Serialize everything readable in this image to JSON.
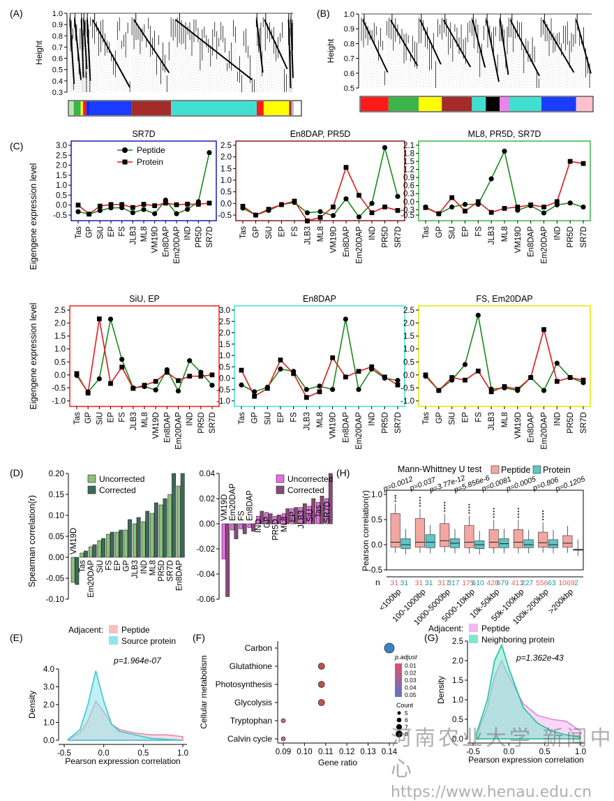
{
  "panel_labels": [
    "(A)",
    "(B)",
    "(C)",
    "(D)",
    "(E)",
    "(F)",
    "(G)",
    "(H)"
  ],
  "dendro_ylabel": "Height",
  "dendroA_ticks": [
    "0.3",
    "0.4",
    "0.5",
    "0.6",
    "0.7",
    "0.8",
    "0.9",
    "1.0"
  ],
  "dendroB_ticks": [
    "0.5",
    "0.6",
    "0.7",
    "0.8",
    "0.9",
    "1.0"
  ],
  "dendroA_colors": [
    [
      "#bfe3b5",
      0.02
    ],
    [
      "#3ab54a",
      0.03
    ],
    [
      "#ffff00",
      0.01
    ],
    [
      "#ff1a1a",
      0.015
    ],
    [
      "#0033ff",
      0.015
    ],
    [
      "#1a3cff",
      0.18
    ],
    [
      "#a52a2a",
      0.17
    ],
    [
      "#40e0d0",
      0.37
    ],
    [
      "#ff1a1a",
      0.03
    ],
    [
      "#ffff00",
      0.11
    ],
    [
      "#a52a2a",
      0.01
    ],
    [
      "#bdbdbd",
      0.01
    ]
  ],
  "dendroB_colors": [
    [
      "#ff1a1a",
      0.12
    ],
    [
      "#3ab54a",
      0.13
    ],
    [
      "#ffff00",
      0.1
    ],
    [
      "#a52a2a",
      0.13
    ],
    [
      "#40e0d0",
      0.06
    ],
    [
      "#000000",
      0.06
    ],
    [
      "#ee82ee",
      0.04
    ],
    [
      "#40e0d0",
      0.14
    ],
    [
      "#1a3cff",
      0.15
    ],
    [
      "#ffc0cb",
      0.07
    ]
  ],
  "eigengene_ylabel": "Eigengene expression level",
  "legend_peptide": "Peptide",
  "legend_protein": "Protein",
  "categories": [
    "Tas",
    "GP",
    "SiU",
    "EP",
    "FS",
    "JLB3",
    "ML8",
    "VM19D",
    "En8DAP",
    "Em20DAP",
    "IND",
    "PR5D",
    "SR7D"
  ],
  "chart_data": [
    {
      "type": "line",
      "panel": "C1",
      "title": "SR7D",
      "frame_color": "#1a1ab4",
      "ylim": [
        -0.5,
        3.0
      ],
      "yticks": [
        "-0.5",
        "0.0",
        "0.5",
        "1.0",
        "1.5",
        "2.0",
        "2.5",
        "3.0"
      ],
      "categories": [
        "Tas",
        "GP",
        "SiU",
        "EP",
        "FS",
        "JLB3",
        "ML8",
        "VM19D",
        "En8DAP",
        "Em20DAP",
        "IND",
        "PR5D",
        "SR7D"
      ],
      "series": [
        {
          "name": "Peptide",
          "values": [
            -0.33,
            -0.45,
            -0.27,
            -0.14,
            -0.13,
            -0.38,
            -0.22,
            -0.43,
            0.25,
            -0.43,
            -0.21,
            0.17,
            2.63
          ]
        },
        {
          "name": "Protein",
          "values": [
            0.0,
            -0.45,
            -0.05,
            0.03,
            0.03,
            -0.12,
            0.04,
            -0.03,
            0.1,
            0.02,
            0.05,
            0.04,
            0.1
          ]
        }
      ]
    },
    {
      "type": "line",
      "panel": "C2",
      "title": "En8DAP, PR5D",
      "frame_color": "#8b1a1a",
      "ylim": [
        -0.5,
        2.5
      ],
      "yticks": [
        "-0.5",
        "0.0",
        "0.5",
        "1.0",
        "1.5",
        "2.0",
        "2.5"
      ],
      "categories": [
        "Tas",
        "GP",
        "SiU",
        "EP",
        "FS",
        "JLB3",
        "ML8",
        "VM19D",
        "En8DAP",
        "Em20DAP",
        "IND",
        "PR5D",
        "SR7D"
      ],
      "series": [
        {
          "name": "Peptide",
          "values": [
            -0.2,
            -0.5,
            -0.3,
            -0.05,
            0.04,
            -0.4,
            -0.35,
            -0.52,
            0.2,
            -0.58,
            0.0,
            2.4,
            0.3
          ]
        },
        {
          "name": "Protein",
          "values": [
            -0.12,
            -0.5,
            -0.25,
            -0.05,
            0.1,
            -0.75,
            -0.6,
            -0.15,
            1.55,
            0.35,
            -0.4,
            -0.15,
            -0.3
          ]
        }
      ]
    },
    {
      "type": "line",
      "panel": "C3",
      "title": "ML8, PR5D, SR7D",
      "frame_color": "#3ab54a",
      "ylim": [
        -0.5,
        2.1
      ],
      "yticks": [
        "-0.5",
        "-0.3",
        "0.0",
        "0.3",
        "0.6",
        "0.9",
        "1.2",
        "1.5",
        "1.8",
        "2.1"
      ],
      "categories": [
        "Tas",
        "GP",
        "SiU",
        "EP",
        "FS",
        "JLB3",
        "ML8",
        "VM19D",
        "En8DAP",
        "Em20DAP",
        "IND",
        "PR5D",
        "SR7D"
      ],
      "series": [
        {
          "name": "Peptide",
          "values": [
            -0.2,
            -0.45,
            -0.2,
            -0.1,
            -0.1,
            0.85,
            1.88,
            -0.32,
            -0.15,
            -0.42,
            -0.12,
            -0.05,
            -0.2
          ]
        },
        {
          "name": "Protein",
          "values": [
            -0.22,
            -0.45,
            0.15,
            -0.35,
            0.0,
            -0.4,
            -0.25,
            -0.2,
            -0.12,
            -0.2,
            0.0,
            1.5,
            1.42
          ]
        }
      ]
    },
    {
      "type": "line",
      "panel": "C4",
      "title": "SiU, EP",
      "frame_color": "#ff1a1a",
      "ylim": [
        -1.0,
        2.5
      ],
      "yticks": [
        "-1.0",
        "-0.5",
        "0.0",
        "0.5",
        "1.0",
        "1.5",
        "2.0",
        "2.5"
      ],
      "categories": [
        "Tas",
        "GP",
        "SiU",
        "EP",
        "FS",
        "JLB3",
        "ML8",
        "VM19D",
        "En8DAP",
        "Em20DAP",
        "IND",
        "PR5D",
        "SR7D"
      ],
      "series": [
        {
          "name": "Peptide",
          "values": [
            -0.02,
            -0.66,
            -0.15,
            2.15,
            0.6,
            -0.5,
            -0.45,
            -0.58,
            0.2,
            -0.62,
            0.55,
            0.1,
            -0.4
          ]
        },
        {
          "name": "Protein",
          "values": [
            0.05,
            -0.7,
            2.16,
            -0.33,
            0.3,
            -0.52,
            -0.4,
            -0.25,
            0.1,
            -0.22,
            -0.05,
            -0.05,
            0.0
          ]
        }
      ]
    },
    {
      "type": "line",
      "panel": "C5",
      "title": "En8DAP",
      "frame_color": "#40e0d0",
      "ylim": [
        -1.0,
        3.0
      ],
      "yticks": [
        "-1.0",
        "-0.5",
        "0.0",
        "0.5",
        "1.0",
        "1.5",
        "2.0",
        "2.5",
        "3.0"
      ],
      "categories": [
        "Tas",
        "GP",
        "SiU",
        "EP",
        "FS",
        "JLB3",
        "ML8",
        "VM19D",
        "En8DAP",
        "Em20DAP",
        "IND",
        "PR5D",
        "SR7D"
      ],
      "series": [
        {
          "name": "Peptide",
          "values": [
            -0.3,
            -0.6,
            -0.4,
            0.4,
            0.3,
            -0.5,
            -0.35,
            -0.5,
            2.6,
            -0.5,
            0.4,
            0.0,
            -0.1
          ]
        },
        {
          "name": "Protein",
          "values": [
            0.35,
            -0.8,
            -0.45,
            0.8,
            0.2,
            -0.85,
            -0.6,
            0.9,
            0.05,
            0.3,
            0.5,
            0.05,
            -0.3
          ]
        }
      ]
    },
    {
      "type": "line",
      "panel": "C6",
      "title": "FS, Em20DAP",
      "frame_color": "#e6e600",
      "ylim": [
        -1.0,
        2.5
      ],
      "yticks": [
        "-1.0",
        "-0.5",
        "0.0",
        "0.5",
        "1.0",
        "1.5",
        "2.0",
        "2.5"
      ],
      "categories": [
        "Tas",
        "GP",
        "SiU",
        "EP",
        "FS",
        "JLB3",
        "ML8",
        "VM19D",
        "En8DAP",
        "Em20DAP",
        "IND",
        "PR5D",
        "SR7D"
      ],
      "series": [
        {
          "name": "Peptide",
          "values": [
            -0.05,
            -0.6,
            -0.2,
            0.4,
            2.3,
            -0.55,
            -0.5,
            -0.6,
            -0.1,
            -0.6,
            0.45,
            -0.1,
            -0.3
          ]
        },
        {
          "name": "Protein",
          "values": [
            0.0,
            -0.6,
            -0.1,
            -0.2,
            0.15,
            -0.65,
            -0.45,
            -0.55,
            -0.1,
            1.75,
            -0.25,
            -0.1,
            -0.2
          ]
        }
      ]
    },
    {
      "type": "bar",
      "panel": "D1",
      "ylabel": "Spearman correlation(r)",
      "ylim": [
        -0.1,
        0.2
      ],
      "yticks": [
        "-0.10",
        "-0.05",
        "0.00",
        "0.05",
        "0.10",
        "0.15",
        "0.20"
      ],
      "legend": [
        "Uncorrected",
        "Corrected"
      ],
      "colors": [
        "#8cc07a",
        "#3d6a5a"
      ],
      "categories": [
        "VM19D",
        "Tas",
        "Em20DAP",
        "SiU",
        "FS",
        "EP",
        "GP",
        "JLB3",
        "IND",
        "ML8",
        "PR5D",
        "SR7D",
        "En8DAP"
      ],
      "series": [
        {
          "name": "Uncorrected",
          "values": [
            -0.06,
            0.01,
            0.025,
            0.04,
            0.055,
            0.06,
            0.065,
            0.08,
            0.085,
            0.105,
            0.125,
            0.15,
            0.17
          ]
        },
        {
          "name": "Corrected",
          "values": [
            -0.065,
            0.015,
            0.03,
            0.045,
            0.06,
            0.065,
            0.09,
            0.095,
            0.11,
            0.13,
            0.14,
            0.2,
            0.2
          ]
        }
      ]
    },
    {
      "type": "bar",
      "panel": "D2",
      "ylim": [
        -0.06,
        0.04
      ],
      "yticks": [
        "-0.06",
        "-0.04",
        "-0.02",
        "0.00",
        "0.02",
        "0.04"
      ],
      "legend": [
        "Uncorrected",
        "Corrected"
      ],
      "colors": [
        "#e86ee8",
        "#8a4a78"
      ],
      "categories": [
        "VM19D",
        "Em20DAP",
        "FS",
        "En8DAP",
        "IND",
        "GP",
        "PR5D",
        "ML8",
        "EP",
        "JLB3",
        "SiU",
        "Tas",
        "SR7D"
      ],
      "series": [
        {
          "name": "Uncorrected",
          "values": [
            -0.028,
            -0.005,
            -0.004,
            -0.003,
            0.006,
            0.009,
            0.006,
            0.008,
            0.012,
            0.013,
            0.014,
            0.017,
            0.02
          ]
        },
        {
          "name": "Corrected",
          "values": [
            -0.058,
            -0.012,
            -0.008,
            -0.006,
            0.01,
            0.008,
            0.007,
            0.012,
            0.013,
            0.016,
            0.02,
            0.022,
            0.04
          ]
        }
      ]
    },
    {
      "type": "box",
      "panel": "H",
      "title": "Mann-Whittney U test",
      "ylabel": "Pearson correlation(r)",
      "ylim": [
        -0.5,
        1.0
      ],
      "yticks": [
        "-0.5",
        "0.0",
        "0.5",
        "1.0"
      ],
      "legend": [
        "Peptide",
        "Protein"
      ],
      "categories": [
        "<100bp",
        "100-1000bp",
        "1000-5000bp",
        "5000-10kbp",
        "10k-50kbp",
        "50k-100kbp",
        "100k-200kbp",
        ">200kbp"
      ],
      "pvalues": [
        "p=0.0012",
        "p=0.037",
        "p=3.77e-12",
        "p=5.856e-6",
        "p=0.0081",
        "p=0.0005",
        "p=0.806",
        "p=0.1205"
      ],
      "n_peptide": [
        "31",
        "31",
        "317",
        "175",
        "420",
        "413",
        "556",
        "1069"
      ],
      "n_protein": [
        "31",
        "31",
        "317",
        "610",
        "679",
        "227",
        "63",
        "2"
      ],
      "n_label": "n",
      "series": [
        {
          "name": "Peptide",
          "medians": [
            0.05,
            0.05,
            0.08,
            0.05,
            0.05,
            0.05,
            0.04,
            0.03
          ],
          "q1": [
            -0.05,
            -0.05,
            -0.04,
            -0.06,
            -0.06,
            -0.06,
            -0.05,
            -0.05
          ],
          "q3": [
            0.62,
            0.52,
            0.42,
            0.38,
            0.3,
            0.3,
            0.25,
            0.18
          ]
        },
        {
          "name": "Protein",
          "medians": [
            0.0,
            0.05,
            0.03,
            0.0,
            0.02,
            0.0,
            0.0,
            -0.1
          ],
          "q1": [
            -0.08,
            -0.06,
            -0.06,
            -0.08,
            -0.06,
            -0.06,
            -0.06,
            -0.11
          ],
          "q3": [
            0.12,
            0.2,
            0.12,
            0.08,
            0.12,
            0.1,
            0.1,
            -0.09
          ]
        }
      ]
    },
    {
      "type": "area",
      "panel": "E",
      "xlabel": "Pearson expression correlation",
      "ylabel": "Density",
      "xlim": [
        -0.5,
        1.0
      ],
      "ylim": [
        0,
        4.0
      ],
      "xticks": [
        "-0.5",
        "0.0",
        "0.5",
        "1.0"
      ],
      "yticks": [
        "0.0",
        "1.0",
        "2.0",
        "3.0",
        "4.0"
      ],
      "legend_title": "Adjacent:",
      "pvalue": "p=1.964e-07",
      "series": [
        {
          "name": "Peptide",
          "x": [
            -0.45,
            -0.3,
            -0.2,
            -0.1,
            0.0,
            0.1,
            0.2,
            0.4,
            0.6,
            0.8,
            1.0
          ],
          "y": [
            0.05,
            0.4,
            1.1,
            2.2,
            1.6,
            0.9,
            0.6,
            0.4,
            0.3,
            0.3,
            0.2
          ]
        },
        {
          "name": "Source protein",
          "x": [
            -0.45,
            -0.3,
            -0.2,
            -0.1,
            0.0,
            0.1,
            0.2,
            0.4,
            0.6,
            0.8,
            1.0
          ],
          "y": [
            0.05,
            0.6,
            2.0,
            3.9,
            2.2,
            0.9,
            0.5,
            0.3,
            0.1,
            0.05,
            0.0
          ]
        }
      ]
    },
    {
      "type": "scatter",
      "panel": "F",
      "ylabel": "Cellular metabolism",
      "xlabel": "Gene ratio",
      "xlim": [
        0.09,
        0.14
      ],
      "xticks": [
        "0.09",
        "0.10",
        "0.11",
        "0.12",
        "0.13",
        "0.14"
      ],
      "categories": [
        "Carbon",
        "Glutathione",
        "Photosynthesis",
        "Glycolysis",
        "Tryptophan",
        "Calvin cycle"
      ],
      "x": [
        0.14,
        0.108,
        0.108,
        0.108,
        0.09,
        0.09
      ],
      "legend_color_title": "p.adjust",
      "color_ticks": [
        "0.01",
        "0.02",
        "0.03",
        "0.04",
        "0.05"
      ],
      "legend_size_title": "Count",
      "size_ticks": [
        "5",
        "6",
        "7",
        "8"
      ]
    },
    {
      "type": "area",
      "panel": "G",
      "xlabel": "Pearson expression correlation",
      "ylabel": "Density",
      "xlim": [
        -0.5,
        1.0
      ],
      "ylim": [
        0,
        2.5
      ],
      "xticks": [
        "-0.5",
        "0.0",
        "0.5",
        "1.0"
      ],
      "yticks": [
        "0.0",
        "0.5",
        "1.0",
        "1.5",
        "2.0",
        "2.5"
      ],
      "legend_title": "Adjacent:",
      "pvalue": "p=1.362e-43",
      "series": [
        {
          "name": "Peptide",
          "x": [
            -0.45,
            -0.3,
            -0.2,
            -0.1,
            0.0,
            0.2,
            0.4,
            0.6,
            0.8,
            1.0
          ],
          "y": [
            0.1,
            0.8,
            1.6,
            2.0,
            1.6,
            0.9,
            0.6,
            0.5,
            0.45,
            0.2
          ]
        },
        {
          "name": "Neighboring protein",
          "x": [
            -0.45,
            -0.3,
            -0.2,
            -0.1,
            0.0,
            0.2,
            0.4,
            0.6,
            0.8,
            1.0
          ],
          "y": [
            0.15,
            1.0,
            2.0,
            2.4,
            1.8,
            0.8,
            0.4,
            0.2,
            0.1,
            0.05
          ]
        }
      ]
    }
  ],
  "watermark_cn": "河南农业大学 新闻中心",
  "watermark_url": "https://www.henau.edu.cn"
}
